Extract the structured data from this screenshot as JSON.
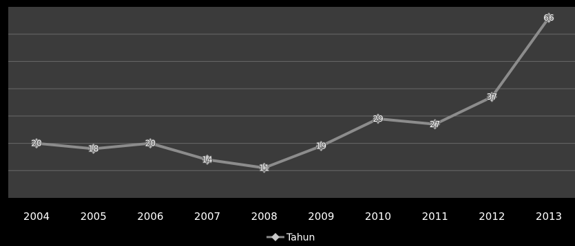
{
  "chart_data": {
    "type": "line",
    "categories": [
      "2004",
      "2005",
      "2006",
      "2007",
      "2008",
      "2009",
      "2010",
      "2011",
      "2012",
      "2013"
    ],
    "series": [
      {
        "name": "Tahun",
        "values": [
          20,
          18,
          20,
          14,
          11,
          19,
          29,
          27,
          37,
          66
        ]
      }
    ],
    "ylim": [
      0,
      70
    ],
    "y_gridline_step": 10,
    "grid": true,
    "legend_position": "bottom",
    "colors": {
      "page_background": "#000000",
      "plot_background": "#3b3b3b",
      "gridline": "#6a6a6a",
      "line": "#8c8c8c",
      "marker": "#c8c8c8",
      "text": "#ffffff"
    },
    "marker_shape": "diamond"
  }
}
